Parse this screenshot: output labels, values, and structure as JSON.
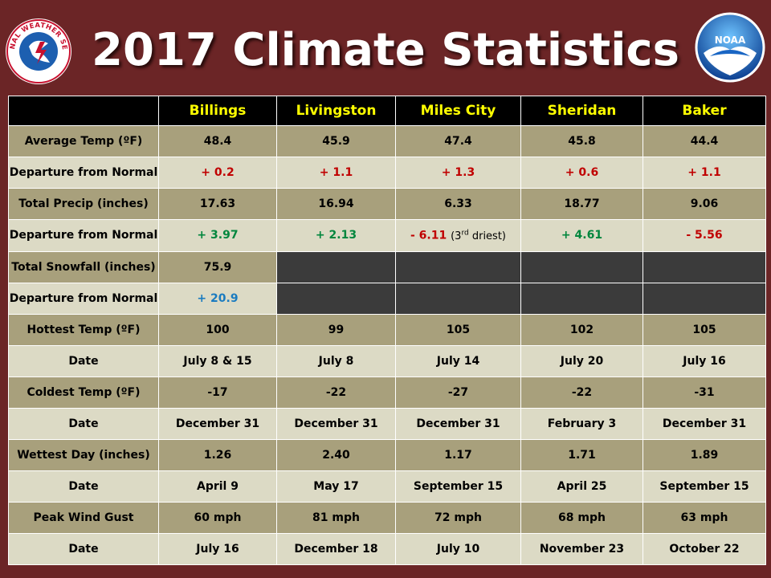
{
  "title": "2017 Climate Statistics",
  "logos": {
    "left": {
      "icon": "nws-logo-icon",
      "text": "NATIONAL WEATHER SERVICE"
    },
    "right": {
      "icon": "noaa-logo-icon",
      "text": "NOAA"
    }
  },
  "colors": {
    "background": "#6b2526",
    "header": "#000000",
    "header_text": "#ffff00",
    "row_dark": "#a8a07c",
    "row_light": "#dcdac5",
    "red": "#c00000",
    "green": "#00863d",
    "blue": "#1a7bc0"
  },
  "table": {
    "columns": [
      "",
      "Billings",
      "Livingston",
      "Miles City",
      "Sheridan",
      "Baker"
    ],
    "rows": [
      {
        "label": "Average Temp (ºF)",
        "values": [
          "48.4",
          "45.9",
          "47.4",
          "45.8",
          "44.4"
        ]
      },
      {
        "label": "Departure from Normal",
        "values": [
          "+ 0.2",
          "+ 1.1",
          "+ 1.3",
          "+ 0.6",
          "+ 1.1"
        ]
      },
      {
        "label": "Total Precip (inches)",
        "values": [
          "17.63",
          "16.94",
          "6.33",
          "18.77",
          "9.06"
        ]
      },
      {
        "label": "Departure from Normal",
        "values": [
          "+ 3.97",
          "+ 2.13",
          "- 6.11",
          "+ 4.61",
          "- 5.56"
        ],
        "note": {
          "pre": "(3",
          "sup": "rd",
          "post": " driest)"
        }
      },
      {
        "label": "Total Snowfall (inches)",
        "values": [
          "75.9"
        ]
      },
      {
        "label": "Departure from Normal",
        "values": [
          "+ 20.9"
        ]
      },
      {
        "label": "Hottest Temp (ºF)",
        "values": [
          "100",
          "99",
          "105",
          "102",
          "105"
        ]
      },
      {
        "label": "Date",
        "values": [
          "July 8 & 15",
          "July 8",
          "July 14",
          "July 20",
          "July 16"
        ]
      },
      {
        "label": "Coldest Temp (ºF)",
        "values": [
          "-17",
          "-22",
          "-27",
          "-22",
          "-31"
        ]
      },
      {
        "label": "Date",
        "values": [
          "December 31",
          "December 31",
          "December 31",
          "February 3",
          "December 31"
        ]
      },
      {
        "label": "Wettest Day (inches)",
        "values": [
          "1.26",
          "2.40",
          "1.17",
          "1.71",
          "1.89"
        ]
      },
      {
        "label": "Date",
        "values": [
          "April 9",
          "May 17",
          "September 15",
          "April 25",
          "September 15"
        ]
      },
      {
        "label": "Peak Wind Gust",
        "values": [
          "60 mph",
          "81 mph",
          "72 mph",
          "68 mph",
          "63 mph"
        ]
      },
      {
        "label": "Date",
        "values": [
          "July 16",
          "December 18",
          "July 10",
          "November 23",
          "October 22"
        ]
      }
    ]
  }
}
